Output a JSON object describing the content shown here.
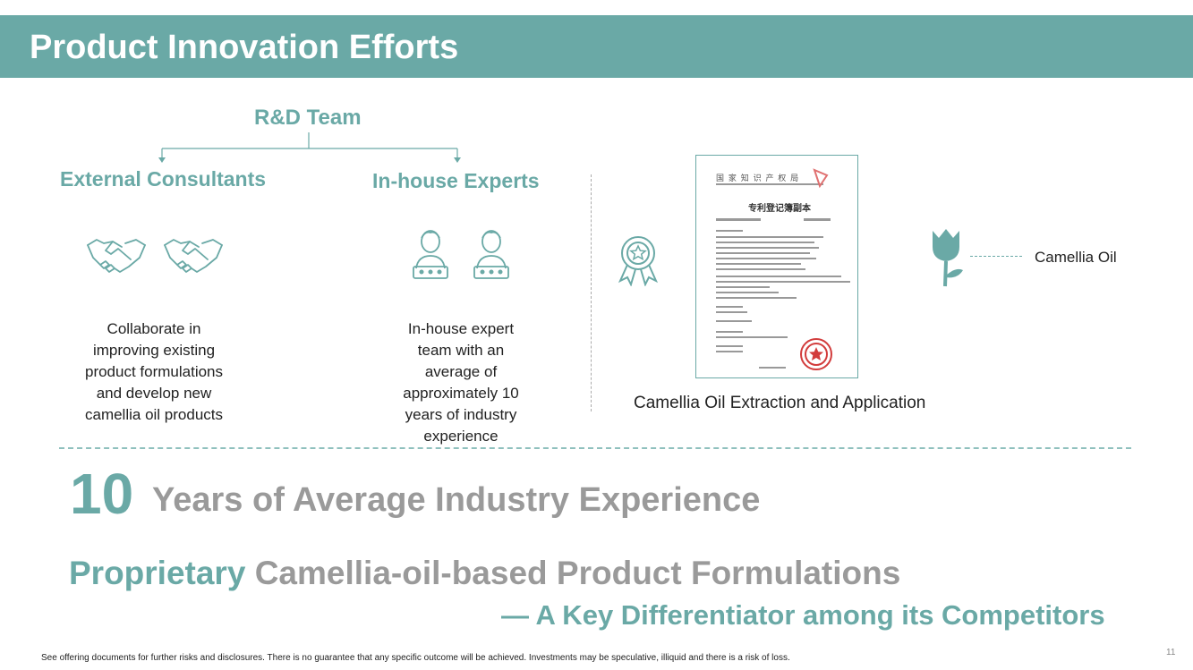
{
  "header": {
    "title": "Product Innovation Efforts"
  },
  "org": {
    "root": "R&D Team",
    "left": {
      "title": "External Consultants",
      "description": [
        "Collaborate in",
        "improving existing",
        "product formulations",
        "and develop new",
        "camellia oil products"
      ]
    },
    "right": {
      "title": "In-house Experts",
      "description": [
        "In-house expert",
        "team with an",
        "average of",
        "approximately 10",
        "years of industry",
        "experience"
      ]
    }
  },
  "patent": {
    "caption": "Camellia Oil Extraction and Application",
    "flower_label": "Camellia Oil",
    "certificate": {
      "header_cn": "国 家 知 识 产 权 局",
      "title_cn": "专利登记簿副本"
    }
  },
  "stats": {
    "number": "10",
    "number_text": "Years of Average Industry Experience",
    "proprietary_highlight": "Proprietary",
    "proprietary_rest": "Camellia-oil-based Product Formulations",
    "differentiator": "— A Key Differentiator among its Competitors"
  },
  "footer": {
    "disclaimer": "See offering documents for further risks and disclosures. There is no guarantee that any specific outcome will be achieved. Investments may be speculative, illiquid and there is a risk of loss.",
    "page_number": "11"
  },
  "colors": {
    "accent": "#6aa9a6",
    "muted_text": "#9a9a9a"
  },
  "icons": [
    "handshake-icon",
    "expert-icon",
    "award-badge-icon",
    "camellia-flower-icon",
    "official-seal-icon"
  ]
}
